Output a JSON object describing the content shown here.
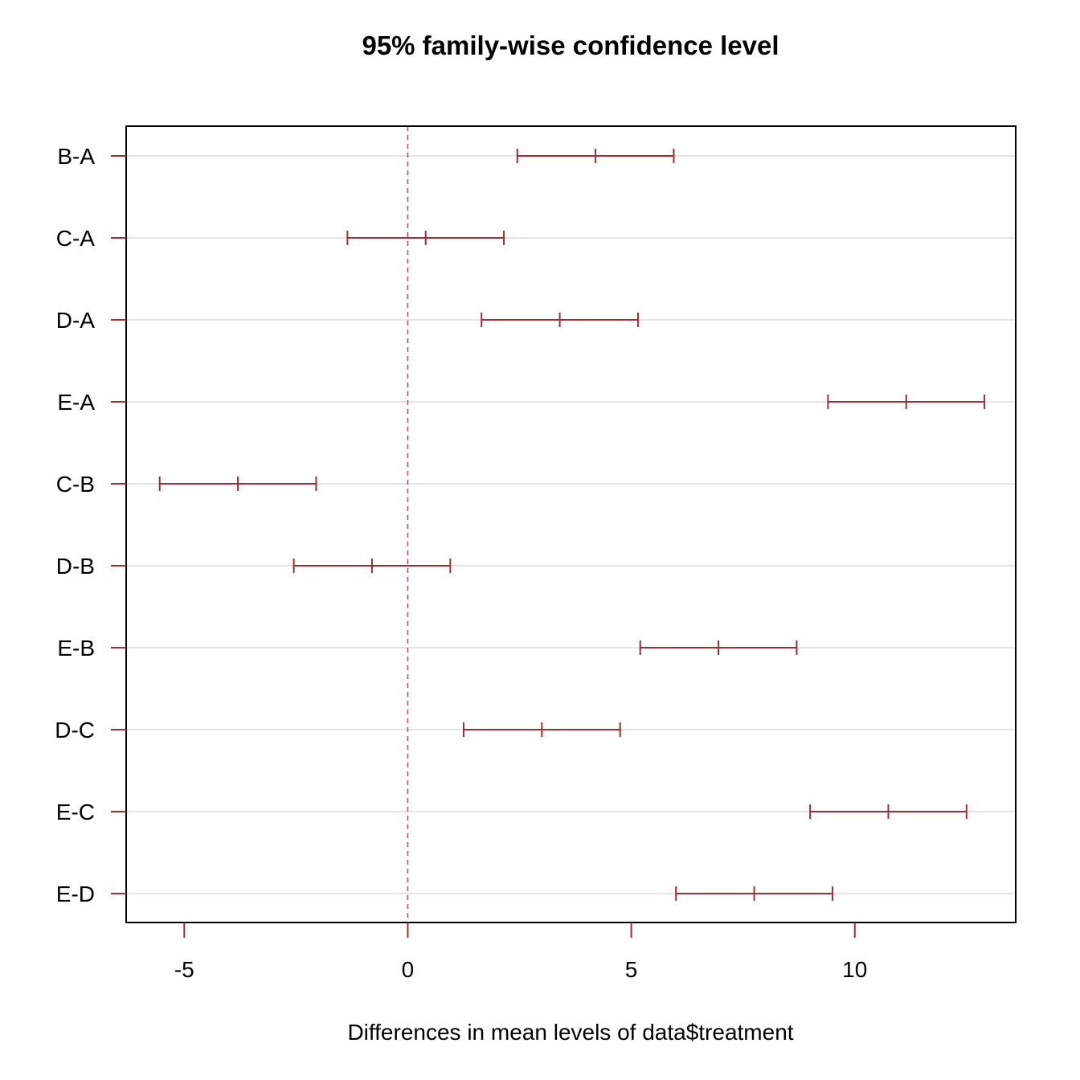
{
  "chart_data": {
    "type": "errorbar",
    "title": "95% family-wise confidence level",
    "xlabel": "Differences in mean levels of data$treatment",
    "ylabel": "",
    "xlim": [
      -6.3,
      13.6
    ],
    "xticks": [
      -5,
      0,
      5,
      10
    ],
    "xtick_labels": [
      "-5",
      "0",
      "5",
      "10"
    ],
    "reference_line": 0,
    "grid": "horizontal",
    "colors": {
      "intervals": "#9b2d35",
      "reference_line": "#b5475a",
      "grid": "#d3d3d3",
      "frame": "#000000"
    },
    "comparisons": [
      {
        "label": "B-A",
        "lwr": 2.45,
        "diff": 4.2,
        "upr": 5.95
      },
      {
        "label": "C-A",
        "lwr": -1.35,
        "diff": 0.4,
        "upr": 2.15
      },
      {
        "label": "D-A",
        "lwr": 1.65,
        "diff": 3.4,
        "upr": 5.15
      },
      {
        "label": "E-A",
        "lwr": 9.4,
        "diff": 11.15,
        "upr": 12.9
      },
      {
        "label": "C-B",
        "lwr": -5.55,
        "diff": -3.8,
        "upr": -2.05
      },
      {
        "label": "D-B",
        "lwr": -2.55,
        "diff": -0.8,
        "upr": 0.95
      },
      {
        "label": "E-B",
        "lwr": 5.2,
        "diff": 6.95,
        "upr": 8.7
      },
      {
        "label": "D-C",
        "lwr": 1.25,
        "diff": 3.0,
        "upr": 4.75
      },
      {
        "label": "E-C",
        "lwr": 9.0,
        "diff": 10.75,
        "upr": 12.5
      },
      {
        "label": "E-D",
        "lwr": 6.0,
        "diff": 7.75,
        "upr": 9.5
      }
    ]
  }
}
